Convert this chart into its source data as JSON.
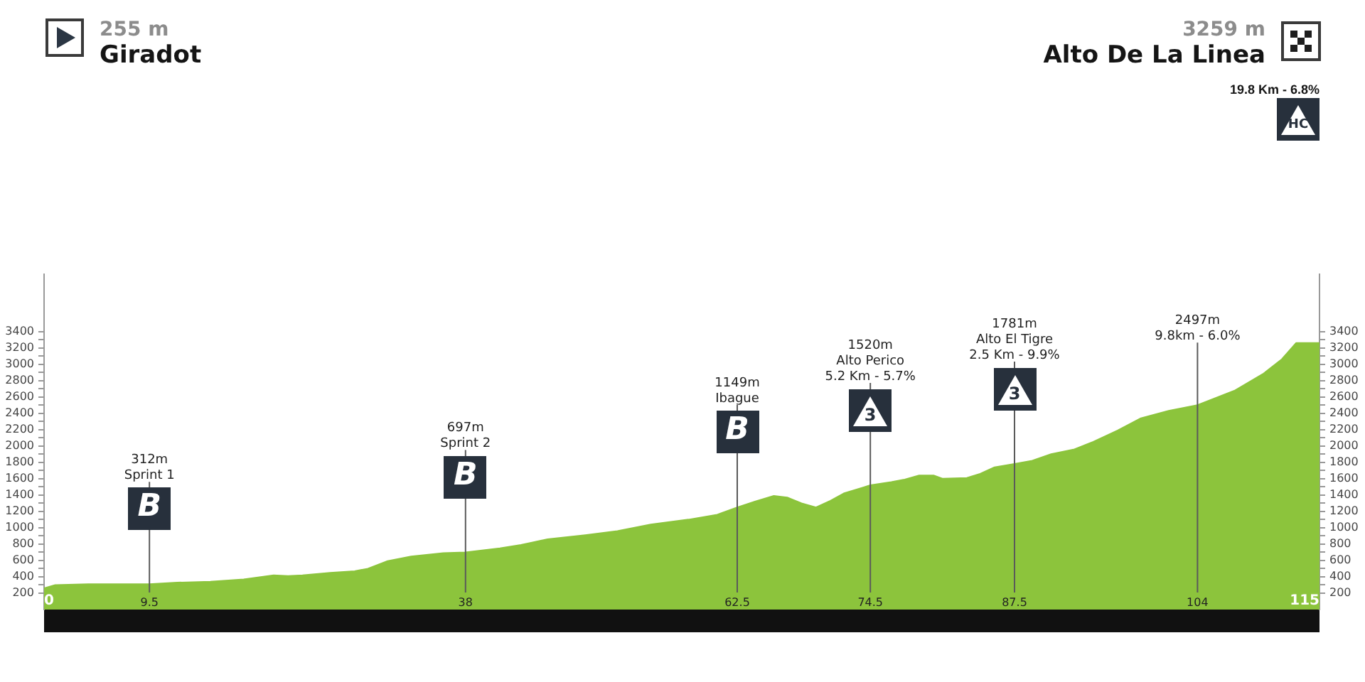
{
  "chart_data": {
    "type": "area",
    "x": [
      0,
      1,
      4,
      7,
      9.5,
      12,
      15,
      18,
      20.7,
      22,
      23.3,
      25.8,
      28,
      29.2,
      30.9,
      33.1,
      36,
      38,
      41.1,
      43,
      45.4,
      48.8,
      51.7,
      54.7,
      58.1,
      60.7,
      62.5,
      64.1,
      65.8,
      67,
      68.3,
      69.6,
      70.9,
      72.1,
      73.8,
      74.5,
      76.4,
      77.6,
      78.9,
      80.2,
      81,
      83.2,
      84.4,
      85.7,
      87.5,
      89.1,
      90.8,
      92.9,
      94.6,
      96.8,
      98.9,
      101.4,
      104,
      107.4,
      109.9,
      111.6,
      112.9,
      115
    ],
    "values": [
      260,
      300,
      310,
      310,
      310,
      330,
      340,
      370,
      420,
      410,
      420,
      450,
      470,
      500,
      590,
      650,
      690,
      700,
      750,
      790,
      860,
      910,
      960,
      1040,
      1100,
      1160,
      1250,
      1320,
      1390,
      1370,
      1300,
      1250,
      1330,
      1420,
      1490,
      1520,
      1560,
      1590,
      1640,
      1640,
      1600,
      1610,
      1660,
      1740,
      1780,
      1820,
      1900,
      1960,
      2050,
      2190,
      2340,
      2430,
      2500,
      2680,
      2880,
      3060,
      3260,
      3260
    ],
    "color": "#8cc43c",
    "xlim": [
      0,
      115
    ],
    "xticks": [
      0,
      9.5,
      38,
      62.5,
      74.5,
      87.5,
      104,
      115
    ],
    "ylim": [
      0,
      4100
    ],
    "yticks": [
      200,
      {
        "value": 300,
        "label": null
      },
      400,
      {
        "value": 500,
        "label": null
      },
      600,
      {
        "value": 700,
        "label": null
      },
      800,
      {
        "value": 900,
        "label": null
      },
      1000,
      {
        "value": 1100,
        "label": null
      },
      1200,
      {
        "value": 1300,
        "label": null
      },
      1400,
      {
        "value": 1500,
        "label": null
      },
      1600,
      {
        "value": 1700,
        "label": null
      },
      1800,
      {
        "value": 1900,
        "label": null
      },
      2000,
      {
        "value": 2100,
        "label": null
      },
      2200,
      {
        "value": 2300,
        "label": null
      },
      2400,
      {
        "value": 2500,
        "label": null
      },
      2600,
      {
        "value": 2700,
        "label": null
      },
      2800,
      {
        "value": 2900,
        "label": null
      },
      3000,
      {
        "value": 3100,
        "label": null
      },
      3200,
      {
        "value": 3300,
        "label": null
      },
      3400
    ],
    "y2lim": [
      0,
      4100
    ],
    "y2ticks": [
      200,
      {
        "value": 300,
        "label": null
      },
      400,
      {
        "value": 500,
        "label": null
      },
      600,
      {
        "value": 700,
        "label": null
      },
      800,
      {
        "value": 900,
        "label": null
      },
      1000,
      {
        "value": 1100,
        "label": null
      },
      1200,
      {
        "value": 1300,
        "label": null
      },
      1400,
      {
        "value": 1500,
        "label": null
      },
      1600,
      {
        "value": 1700,
        "label": null
      },
      1800,
      {
        "value": 1900,
        "label": null
      },
      2000,
      {
        "value": 2100,
        "label": null
      },
      2200,
      {
        "value": 2300,
        "label": null
      },
      2400,
      {
        "value": 2500,
        "label": null
      },
      2600,
      {
        "value": 2700,
        "label": null
      },
      2800,
      {
        "value": 2900,
        "label": null
      },
      3000,
      {
        "value": 3100,
        "label": null
      },
      3200,
      {
        "value": 3300,
        "label": null
      },
      3400
    ],
    "ref_lines": [
      {
        "axis": "x",
        "value": 9.5,
        "label": "312m\nSprint 1"
      },
      {
        "axis": "x",
        "value": 38,
        "label": "697m\nSprint 2"
      },
      {
        "axis": "x",
        "value": 62.5,
        "label": "1149m\nIbague"
      },
      {
        "axis": "x",
        "value": 74.5,
        "label": "1520m\nAlto Perico\n5.2 Km - 5.7%"
      },
      {
        "axis": "x",
        "value": 87.5,
        "label": "1781m\nAlto El Tigre\n2.5 Km - 9.9%"
      },
      {
        "axis": "x",
        "value": 104,
        "label": "2497m\n9.8km - 6.0%"
      }
    ],
    "annotations": [
      "255 m",
      "Giradot",
      "3259 m",
      "Alto De La Linea",
      "19.8 Km - 6.8%",
      "HC",
      "B",
      "B",
      "B",
      "3",
      "3"
    ]
  }
}
